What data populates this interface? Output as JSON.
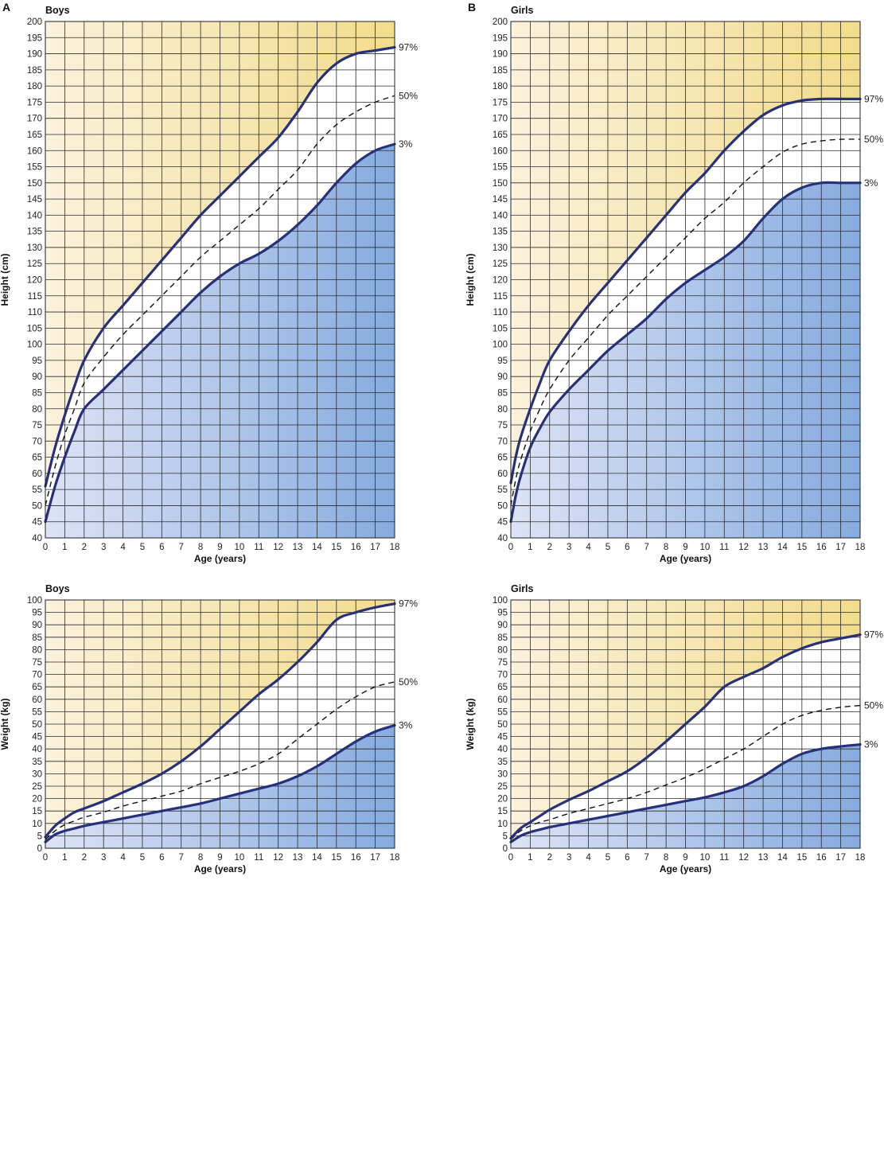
{
  "colors": {
    "top_fill_light": "#fbf1dc",
    "top_fill_dark": "#f2dc8c",
    "bottom_fill_light": "#dde3f6",
    "bottom_fill_dark": "#86abdf",
    "curve": "#27307a",
    "median": "#111111",
    "grid": "#2a2a2a"
  },
  "chart_data": [
    {
      "type": "line",
      "panel": "A",
      "title": "Boys",
      "xlabel": "Age (years)",
      "ylabel": "Height (cm)",
      "xlim": [
        0,
        18
      ],
      "ylim": [
        40,
        200
      ],
      "x_ticks": [
        "0",
        "1",
        "2",
        "3",
        "4",
        "5",
        "6",
        "7",
        "8",
        "9",
        "10",
        "11",
        "12",
        "13",
        "14",
        "15",
        "16",
        "17",
        "18"
      ],
      "y_ticks": [
        "40",
        "45",
        "50",
        "55",
        "60",
        "65",
        "70",
        "75",
        "80",
        "85",
        "90",
        "95",
        "100",
        "105",
        "110",
        "115",
        "120",
        "125",
        "130",
        "135",
        "140",
        "145",
        "150",
        "155",
        "160",
        "165",
        "170",
        "175",
        "180",
        "185",
        "190",
        "195",
        "200"
      ],
      "grid": true,
      "series": [
        {
          "name": "97%",
          "style": "solid",
          "x": [
            0,
            0.5,
            1,
            1.5,
            2,
            3,
            4,
            5,
            6,
            7,
            8,
            9,
            10,
            11,
            12,
            13,
            14,
            15,
            16,
            17,
            18
          ],
          "y": [
            56,
            68,
            78,
            87,
            95,
            105,
            112,
            119,
            126,
            133,
            140,
            146,
            152,
            158,
            164,
            172,
            181,
            187,
            190,
            191,
            192
          ]
        },
        {
          "name": "50%",
          "style": "dashed",
          "x": [
            0,
            0.5,
            1,
            1.5,
            2,
            3,
            4,
            5,
            6,
            7,
            8,
            9,
            10,
            11,
            12,
            13,
            14,
            15,
            16,
            17,
            18
          ],
          "y": [
            50,
            62,
            72,
            80,
            88,
            96,
            103,
            109,
            115,
            121,
            127,
            132,
            137,
            142,
            148,
            154,
            162,
            168,
            172,
            175,
            177
          ]
        },
        {
          "name": "3%",
          "style": "solid",
          "x": [
            0,
            0.5,
            1,
            1.5,
            2,
            3,
            4,
            5,
            6,
            7,
            8,
            9,
            10,
            11,
            12,
            13,
            14,
            15,
            16,
            17,
            18
          ],
          "y": [
            45,
            56,
            65,
            73,
            80,
            86,
            92,
            98,
            104,
            110,
            116,
            121,
            125,
            128,
            132,
            137,
            143,
            150,
            156,
            160,
            162
          ]
        }
      ]
    },
    {
      "type": "line",
      "panel": "B",
      "title": "Girls",
      "xlabel": "Age (years)",
      "ylabel": "Height (cm)",
      "xlim": [
        0,
        18
      ],
      "ylim": [
        40,
        200
      ],
      "x_ticks": [
        "0",
        "1",
        "2",
        "3",
        "4",
        "5",
        "6",
        "7",
        "8",
        "9",
        "10",
        "11",
        "12",
        "13",
        "14",
        "15",
        "16",
        "17",
        "18"
      ],
      "y_ticks": [
        "40",
        "45",
        "50",
        "55",
        "60",
        "65",
        "70",
        "75",
        "80",
        "85",
        "90",
        "95",
        "100",
        "105",
        "110",
        "115",
        "120",
        "125",
        "130",
        "135",
        "140",
        "145",
        "150",
        "155",
        "160",
        "165",
        "170",
        "175",
        "180",
        "185",
        "190",
        "195",
        "200"
      ],
      "grid": true,
      "series": [
        {
          "name": "97%",
          "style": "solid",
          "x": [
            0,
            0.25,
            0.5,
            1,
            1.5,
            2,
            3,
            4,
            5,
            6,
            7,
            8,
            9,
            10,
            11,
            12,
            13,
            14,
            15,
            16,
            17,
            18
          ],
          "y": [
            57,
            65,
            71,
            80,
            88,
            95,
            104,
            112,
            119,
            126,
            133,
            140,
            147,
            153,
            160,
            166,
            171,
            174,
            175.5,
            176,
            176,
            176
          ]
        },
        {
          "name": "50%",
          "style": "dashed",
          "x": [
            0,
            0.25,
            0.5,
            1,
            1.5,
            2,
            3,
            4,
            5,
            6,
            7,
            8,
            9,
            10,
            11,
            12,
            13,
            14,
            15,
            16,
            17,
            18
          ],
          "y": [
            50,
            58,
            64,
            73,
            80,
            86,
            95,
            102,
            109,
            115,
            121,
            127,
            133,
            139,
            144,
            150,
            155,
            159.5,
            162,
            163,
            163.5,
            163.5
          ]
        },
        {
          "name": "3%",
          "style": "solid",
          "x": [
            0,
            0.25,
            0.5,
            1,
            1.5,
            2,
            3,
            4,
            5,
            6,
            7,
            8,
            9,
            10,
            11,
            12,
            13,
            14,
            15,
            16,
            17,
            18
          ],
          "y": [
            45,
            53,
            59,
            68,
            74,
            79,
            86,
            92,
            98,
            103,
            108,
            114,
            119,
            123,
            127,
            132,
            139,
            145,
            148.5,
            150,
            150,
            150
          ]
        }
      ]
    },
    {
      "type": "line",
      "title": "Boys",
      "xlabel": "Age (years)",
      "ylabel": "Weight (kg)",
      "xlim": [
        0,
        18
      ],
      "ylim": [
        0,
        100
      ],
      "x_ticks": [
        "0",
        "1",
        "2",
        "3",
        "4",
        "5",
        "6",
        "7",
        "8",
        "9",
        "10",
        "11",
        "12",
        "13",
        "14",
        "15",
        "16",
        "17",
        "18"
      ],
      "y_ticks": [
        "0",
        "5",
        "10",
        "15",
        "20",
        "25",
        "30",
        "35",
        "40",
        "45",
        "50",
        "55",
        "60",
        "65",
        "70",
        "75",
        "80",
        "85",
        "90",
        "95",
        "100"
      ],
      "grid": true,
      "series": [
        {
          "name": "97%",
          "style": "solid",
          "x": [
            0,
            0.5,
            1,
            1.5,
            2,
            3,
            4,
            5,
            6,
            7,
            8,
            9,
            10,
            11,
            12,
            13,
            14,
            15,
            16,
            17,
            18
          ],
          "y": [
            4.5,
            9,
            12,
            14.5,
            16,
            19,
            22.5,
            26,
            30,
            35,
            41,
            48,
            55,
            62,
            68,
            75,
            83,
            92,
            95,
            97,
            98.5
          ]
        },
        {
          "name": "50%",
          "style": "dashed",
          "x": [
            0,
            0.5,
            1,
            1.5,
            2,
            3,
            4,
            5,
            6,
            7,
            8,
            9,
            10,
            11,
            12,
            13,
            14,
            15,
            16,
            17,
            18
          ],
          "y": [
            3.5,
            7,
            9.5,
            11,
            12.5,
            14.5,
            17,
            19,
            21,
            23,
            26,
            28.5,
            31,
            34,
            38,
            44,
            50,
            56,
            61,
            65,
            67
          ]
        },
        {
          "name": "3%",
          "style": "solid",
          "x": [
            0,
            0.5,
            1,
            1.5,
            2,
            3,
            4,
            5,
            6,
            7,
            8,
            9,
            10,
            11,
            12,
            13,
            14,
            15,
            16,
            17,
            18
          ],
          "y": [
            2.5,
            5.5,
            7,
            8,
            9,
            10.5,
            12,
            13.5,
            15,
            16.5,
            18,
            20,
            22,
            24,
            26,
            29,
            33,
            38,
            43,
            47,
            49.5
          ]
        }
      ]
    },
    {
      "type": "line",
      "title": "Girls",
      "xlabel": "Age (years)",
      "ylabel": "Weight (kg)",
      "xlim": [
        0,
        18
      ],
      "ylim": [
        0,
        100
      ],
      "x_ticks": [
        "0",
        "1",
        "2",
        "3",
        "4",
        "5",
        "6",
        "7",
        "8",
        "9",
        "10",
        "11",
        "12",
        "13",
        "14",
        "15",
        "16",
        "17",
        "18"
      ],
      "y_ticks": [
        "0",
        "5",
        "10",
        "15",
        "20",
        "25",
        "30",
        "35",
        "40",
        "45",
        "50",
        "55",
        "60",
        "65",
        "70",
        "75",
        "80",
        "85",
        "90",
        "95",
        "100"
      ],
      "grid": true,
      "series": [
        {
          "name": "97%",
          "style": "solid",
          "x": [
            0,
            0.5,
            1,
            1.5,
            2,
            3,
            4,
            5,
            6,
            7,
            8,
            9,
            10,
            11,
            12,
            13,
            14,
            15,
            16,
            17,
            18
          ],
          "y": [
            4,
            8,
            10.5,
            13,
            15.5,
            19.5,
            23,
            27,
            31,
            36.5,
            43,
            50,
            57,
            65,
            69,
            72.5,
            77,
            80.5,
            83,
            84.5,
            86
          ]
        },
        {
          "name": "50%",
          "style": "dashed",
          "x": [
            0,
            0.5,
            1,
            1.5,
            2,
            3,
            4,
            5,
            6,
            7,
            8,
            9,
            10,
            11,
            12,
            13,
            14,
            15,
            16,
            17,
            18
          ],
          "y": [
            3.5,
            7,
            9,
            10.5,
            11.5,
            14,
            16,
            18,
            20,
            22.5,
            25.5,
            28.5,
            32,
            36,
            40,
            45,
            50,
            53.5,
            55.5,
            56.8,
            57.5
          ]
        },
        {
          "name": "3%",
          "style": "solid",
          "x": [
            0,
            0.5,
            1,
            1.5,
            2,
            3,
            4,
            5,
            6,
            7,
            8,
            9,
            10,
            11,
            12,
            13,
            14,
            15,
            16,
            17,
            18
          ],
          "y": [
            2.5,
            5,
            6.5,
            7.5,
            8.5,
            10,
            11.5,
            13,
            14.5,
            16,
            17.5,
            19,
            20.5,
            22.5,
            25,
            29,
            34,
            38,
            40,
            41,
            41.8
          ]
        }
      ]
    }
  ]
}
